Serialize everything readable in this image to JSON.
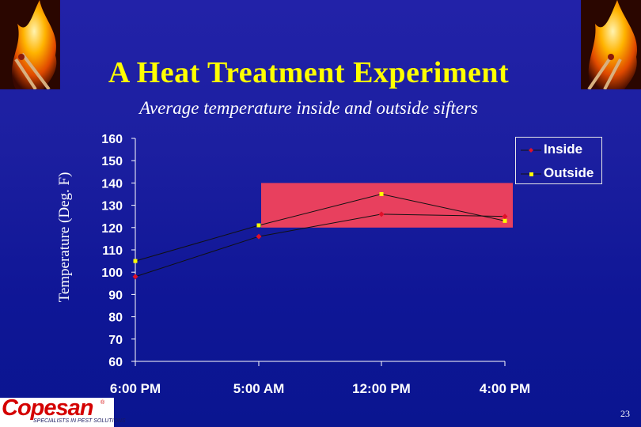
{
  "slide": {
    "title": "A Heat Treatment Experiment",
    "page_number": "23"
  },
  "logo": {
    "brand": "Copesan",
    "tagline": "SPECIALISTS IN PEST SOLUTIONS",
    "registered_mark": "®"
  },
  "decorations": {
    "corner_image": "burning-matches-icon"
  },
  "colors": {
    "title": "#ffff00",
    "inside_series": "#e0102a",
    "outside_series": "#ffff00",
    "target_band": "#e8405e",
    "series_line": "#111111"
  },
  "chart_data": {
    "type": "line",
    "title": "Average temperature inside and outside sifters",
    "xlabel": "",
    "ylabel": "Temperature (Deg. F)",
    "categories": [
      "6:00 PM",
      "5:00 AM",
      "12:00 PM",
      "4:00 PM"
    ],
    "ylim": [
      60,
      160
    ],
    "yticks": [
      60,
      70,
      80,
      90,
      100,
      110,
      120,
      130,
      140,
      150,
      160
    ],
    "grid": false,
    "legend_position": "top-right",
    "series": [
      {
        "name": "Inside",
        "values": [
          98,
          116,
          126,
          125
        ],
        "marker": "diamond"
      },
      {
        "name": "Outside",
        "values": [
          105,
          121,
          135,
          123
        ],
        "marker": "square"
      }
    ],
    "shaded_band": {
      "y_from": 120,
      "y_to": 140,
      "x_from_category": "5:00 AM",
      "x_to_category": "4:00 PM"
    }
  }
}
